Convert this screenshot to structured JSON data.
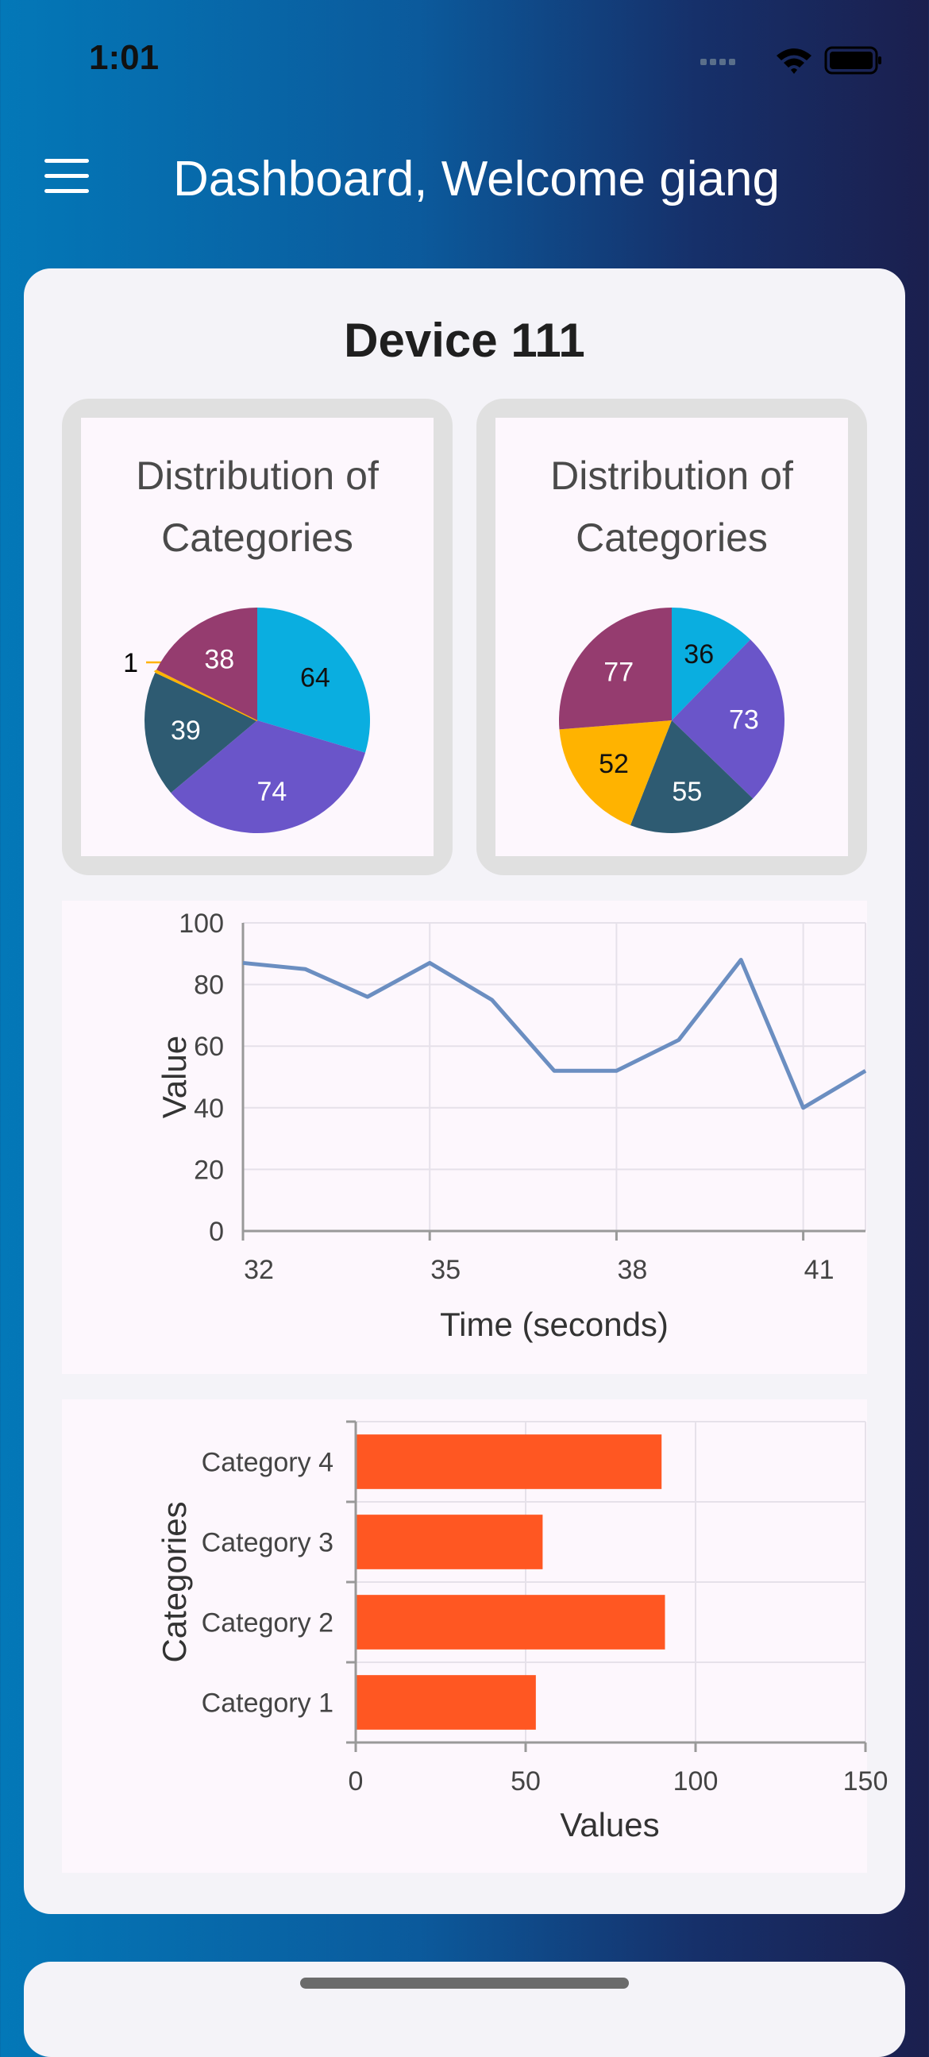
{
  "status_bar": {
    "time": "1:01"
  },
  "app_bar": {
    "title": "Dashboard, Welcome giang"
  },
  "device": {
    "title": "Device 111",
    "pie_left": {
      "title_line1": "Distribution of",
      "title_line2": "Categories"
    },
    "pie_right": {
      "title_line1": "Distribution of",
      "title_line2": "Categories"
    }
  },
  "colors": {
    "cyan": "#0aaee0",
    "purple": "#6a55c9",
    "teal": "#2e5b72",
    "magenta": "#953c6f",
    "amber": "#ffb300",
    "line": "#6b8ec1",
    "bar": "#ff5722"
  },
  "chart_data": [
    {
      "type": "pie",
      "title": "Distribution of Categories",
      "slices": [
        {
          "label": "64",
          "value": 64,
          "color": "#0aaee0"
        },
        {
          "label": "74",
          "value": 74,
          "color": "#6a55c9"
        },
        {
          "label": "39",
          "value": 39,
          "color": "#2e5b72"
        },
        {
          "label": "1",
          "value": 1,
          "color": "#ffb300"
        },
        {
          "label": "38",
          "value": 38,
          "color": "#953c6f"
        }
      ]
    },
    {
      "type": "pie",
      "title": "Distribution of Categories",
      "slices": [
        {
          "label": "36",
          "value": 36,
          "color": "#0aaee0"
        },
        {
          "label": "73",
          "value": 73,
          "color": "#6a55c9"
        },
        {
          "label": "55",
          "value": 55,
          "color": "#2e5b72"
        },
        {
          "label": "52",
          "value": 52,
          "color": "#ffb300"
        },
        {
          "label": "77",
          "value": 77,
          "color": "#953c6f"
        }
      ]
    },
    {
      "type": "line",
      "xlabel": "Time (seconds)",
      "ylabel": "Value",
      "xlim": [
        32,
        42
      ],
      "ylim": [
        0,
        100
      ],
      "x_ticks": [
        32,
        35,
        38,
        41
      ],
      "y_ticks": [
        0,
        20,
        40,
        60,
        80,
        100
      ],
      "x": [
        32,
        33,
        34,
        35,
        36,
        37,
        38,
        39,
        40,
        41,
        42
      ],
      "y": [
        87,
        85,
        76,
        87,
        75,
        52,
        52,
        62,
        88,
        40,
        52
      ],
      "grid": true
    },
    {
      "type": "bar",
      "orientation": "horizontal",
      "xlabel": "Values",
      "ylabel": "Categories",
      "xlim": [
        0,
        150
      ],
      "x_ticks": [
        0,
        50,
        100,
        150
      ],
      "categories": [
        "Category 1",
        "Category 2",
        "Category 3",
        "Category 4"
      ],
      "values": [
        53,
        91,
        55,
        90
      ],
      "grid": true
    }
  ]
}
